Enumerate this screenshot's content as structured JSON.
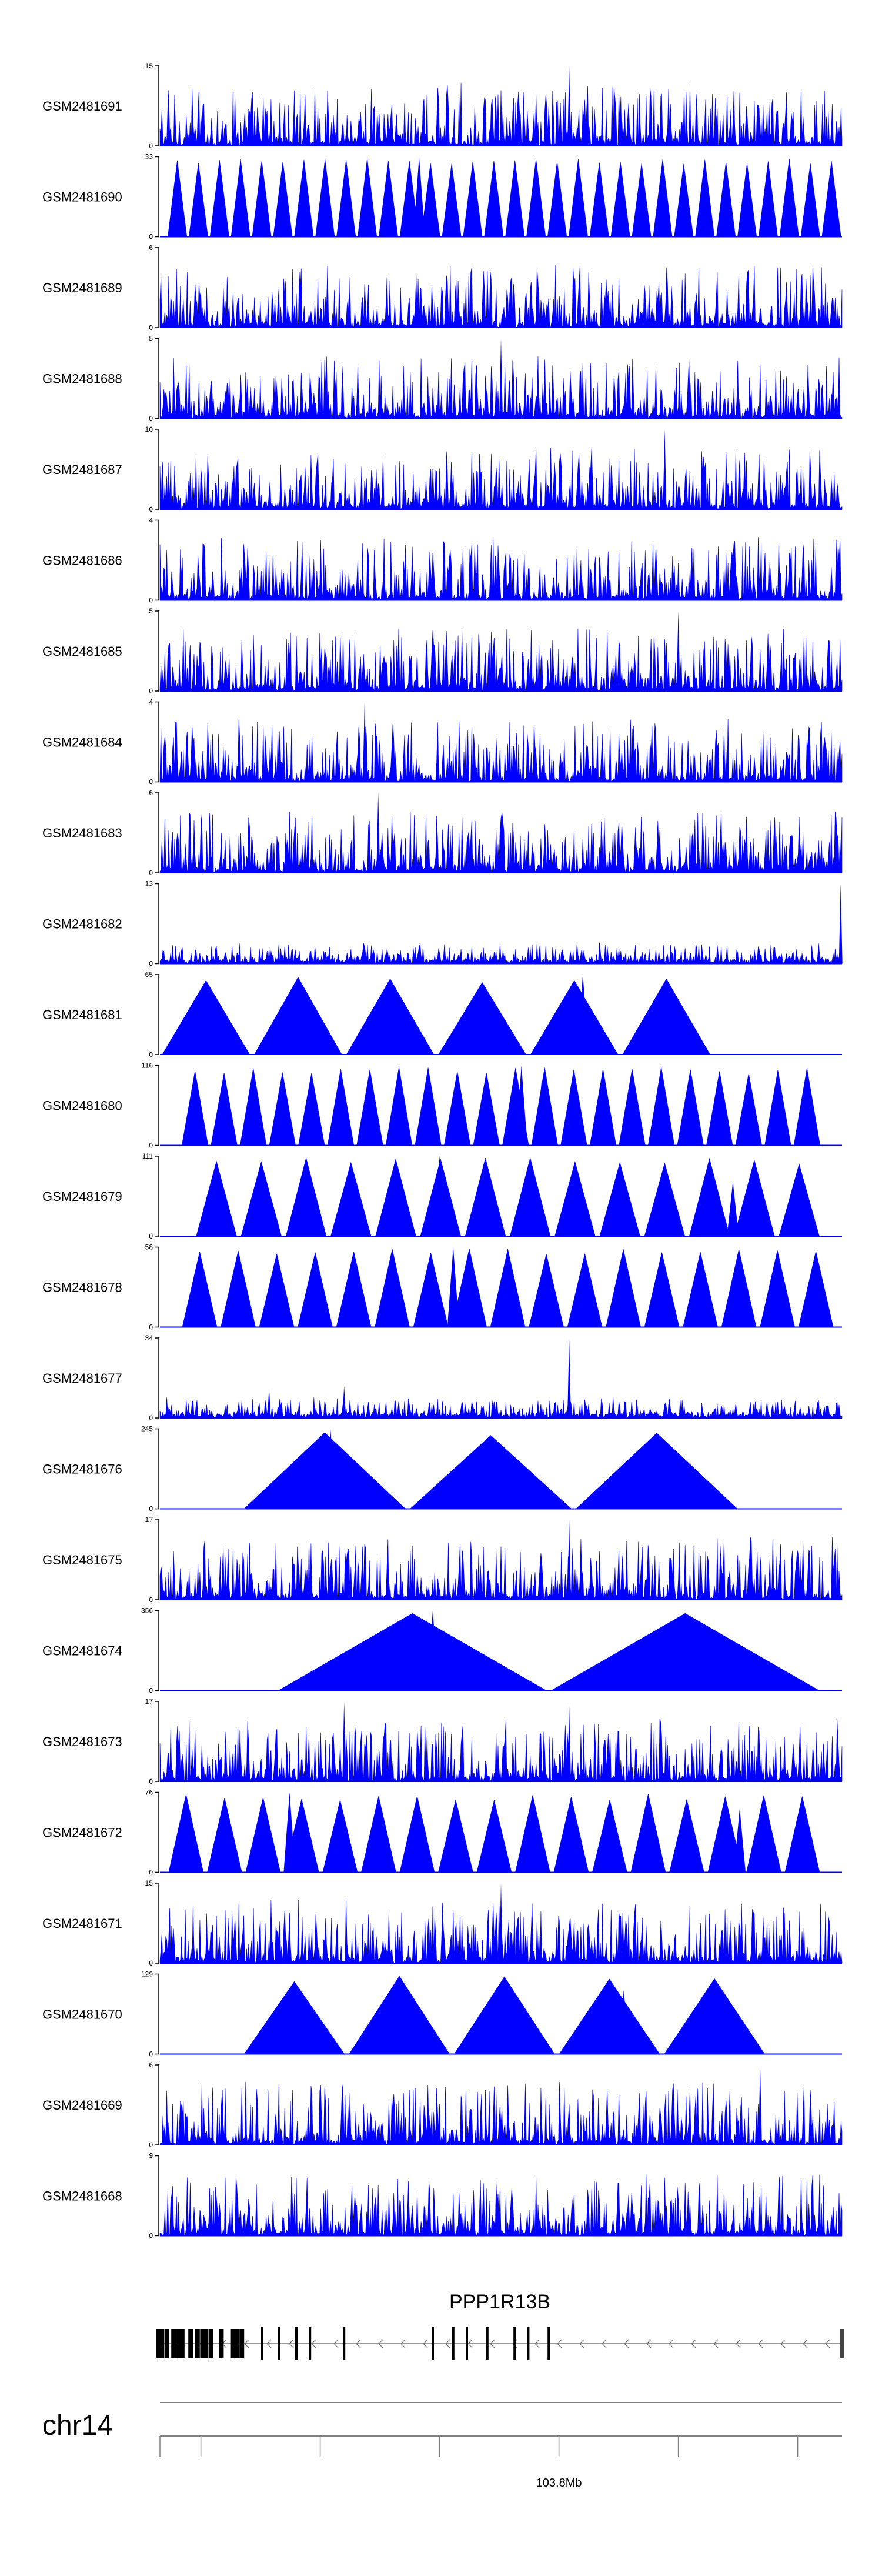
{
  "chart_data": {
    "type": "area",
    "title": "",
    "colors": {
      "signal": "#0000ff",
      "axis": "#000000",
      "gene": "#000000",
      "ruler": "#808080"
    },
    "tracks": [
      {
        "name": "GSM2481691",
        "ymax": 15,
        "pattern": "noise",
        "spikes": [
          [
            0.6,
            1.0
          ]
        ]
      },
      {
        "name": "GSM2481690",
        "ymax": 33,
        "pattern": "tri",
        "count": 32,
        "start": 0.01,
        "end": 1.0,
        "spikes": [
          [
            0.38,
            1.0
          ]
        ]
      },
      {
        "name": "GSM2481689",
        "ymax": 6,
        "pattern": "noise",
        "spikes": []
      },
      {
        "name": "GSM2481688",
        "ymax": 5,
        "pattern": "noise",
        "spikes": [
          [
            0.5,
            1.0
          ]
        ]
      },
      {
        "name": "GSM2481687",
        "ymax": 10,
        "pattern": "noise",
        "spikes": [
          [
            0.74,
            1.0
          ]
        ]
      },
      {
        "name": "GSM2481686",
        "ymax": 4,
        "pattern": "noise",
        "spikes": []
      },
      {
        "name": "GSM2481685",
        "ymax": 5,
        "pattern": "noise",
        "spikes": [
          [
            0.76,
            1.0
          ]
        ]
      },
      {
        "name": "GSM2481684",
        "ymax": 4,
        "pattern": "noise",
        "spikes": [
          [
            0.3,
            1.0
          ]
        ]
      },
      {
        "name": "GSM2481683",
        "ymax": 6,
        "pattern": "noise",
        "spikes": [
          [
            0.32,
            1.0
          ]
        ]
      },
      {
        "name": "GSM2481682",
        "ymax": 13,
        "pattern": "low",
        "spikes": [
          [
            0.998,
            1.0
          ]
        ]
      },
      {
        "name": "GSM2481681",
        "ymax": 65,
        "pattern": "tri",
        "count": 6,
        "start": 0.0,
        "end": 0.81,
        "spikes": [
          [
            0.62,
            1.0
          ]
        ]
      },
      {
        "name": "GSM2481680",
        "ymax": 116,
        "pattern": "tri",
        "count": 22,
        "start": 0.03,
        "end": 0.97,
        "spikes": [
          [
            0.53,
            1.0
          ],
          [
            0.56,
            0.85
          ]
        ]
      },
      {
        "name": "GSM2481679",
        "ymax": 111,
        "pattern": "tri",
        "count": 14,
        "start": 0.05,
        "end": 0.97,
        "spikes": [
          [
            0.41,
            1.0
          ],
          [
            0.84,
            0.68
          ]
        ]
      },
      {
        "name": "GSM2481678",
        "ymax": 58,
        "pattern": "tri",
        "count": 17,
        "start": 0.03,
        "end": 0.99,
        "spikes": [
          [
            0.43,
            1.0
          ]
        ]
      },
      {
        "name": "GSM2481677",
        "ymax": 34,
        "pattern": "low",
        "spikes": [
          [
            0.6,
            1.0
          ],
          [
            0.16,
            0.38
          ],
          [
            0.27,
            0.4
          ]
        ]
      },
      {
        "name": "GSM2481676",
        "ymax": 245,
        "pattern": "tri",
        "count": 3,
        "start": 0.12,
        "end": 0.85,
        "spikes": [
          [
            0.25,
            1.0
          ]
        ]
      },
      {
        "name": "GSM2481675",
        "ymax": 17,
        "pattern": "noise",
        "spikes": [
          [
            0.6,
            1.0
          ]
        ]
      },
      {
        "name": "GSM2481674",
        "ymax": 356,
        "pattern": "tri",
        "count": 2,
        "start": 0.17,
        "end": 0.97,
        "spikes": [
          [
            0.4,
            1.0
          ]
        ]
      },
      {
        "name": "GSM2481673",
        "ymax": 17,
        "pattern": "noise",
        "spikes": [
          [
            0.27,
            1.0
          ],
          [
            0.6,
            0.95
          ]
        ]
      },
      {
        "name": "GSM2481672",
        "ymax": 76,
        "pattern": "tri",
        "count": 17,
        "start": 0.01,
        "end": 0.97,
        "spikes": [
          [
            0.19,
            1.0
          ],
          [
            0.85,
            0.8
          ]
        ]
      },
      {
        "name": "GSM2481671",
        "ymax": 15,
        "pattern": "noise",
        "spikes": [
          [
            0.5,
            1.0
          ]
        ]
      },
      {
        "name": "GSM2481670",
        "ymax": 129,
        "pattern": "tri",
        "count": 5,
        "start": 0.12,
        "end": 0.89,
        "spikes": [
          [
            0.36,
            0.8
          ],
          [
            0.68,
            0.8
          ]
        ]
      },
      {
        "name": "GSM2481669",
        "ymax": 6,
        "pattern": "noise",
        "spikes": [
          [
            0.88,
            1.0
          ]
        ]
      },
      {
        "name": "GSM2481668",
        "ymax": 9,
        "pattern": "noise",
        "spikes": []
      }
    ],
    "gene": {
      "name": "PPP1R13B",
      "exons": [
        0.0,
        0.01,
        0.02,
        0.03,
        0.045,
        0.055,
        0.065,
        0.075,
        0.09,
        0.11,
        0.12,
        0.15,
        0.175,
        0.2,
        0.22,
        0.27,
        0.4,
        0.43,
        0.45,
        0.48,
        0.52,
        0.54,
        0.57,
        1.0
      ],
      "strand": "-"
    },
    "chromosome": "chr14",
    "position_label": "103.8Mb",
    "position_fraction": 0.585,
    "ruler_ticks": [
      0.0,
      0.06,
      0.235,
      0.41,
      0.585,
      0.76,
      0.935
    ]
  }
}
